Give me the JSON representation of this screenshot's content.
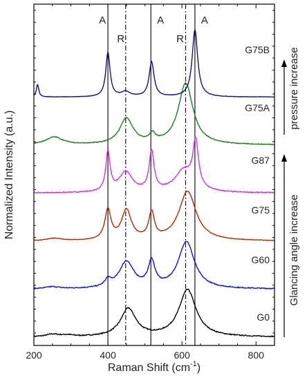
{
  "chart_data": {
    "type": "line",
    "xlabel": "Raman Shift (cm",
    "xlabel_sup": "-1",
    "xlabel_tail": ")",
    "ylabel": "Normalized Intensity (a.u.)",
    "xlim": [
      200,
      850
    ],
    "x_ticks": [
      200,
      400,
      600,
      800
    ],
    "x_tick_labels": [
      "200",
      "400",
      "600",
      "800"
    ],
    "reference_lines": [
      {
        "x": 400,
        "kind": "A",
        "style": "solid"
      },
      {
        "x": 448,
        "kind": "R",
        "style": "dashdot"
      },
      {
        "x": 516,
        "kind": "A",
        "style": "solid"
      },
      {
        "x": 610,
        "kind": "R",
        "style": "dashdot"
      },
      {
        "x": 635,
        "kind": "A",
        "style": "solid"
      }
    ],
    "peak_letters": [
      {
        "x": 400,
        "text": "A"
      },
      {
        "x": 448,
        "text": "R"
      },
      {
        "x": 516,
        "text": "A"
      },
      {
        "x": 610,
        "text": "R"
      },
      {
        "x": 635,
        "text": "A"
      }
    ],
    "series": [
      {
        "name": "G0",
        "color": "#000000",
        "baseline": 0.0,
        "noise": 0.01,
        "peaks": [
          [
            455,
            0.58,
            25
          ],
          [
            615,
            0.98,
            28
          ],
          [
            250,
            0.05,
            20
          ],
          [
            290,
            0.03,
            20
          ]
        ]
      },
      {
        "name": "G60",
        "color": "#1010d8",
        "baseline": 1.0,
        "noise": 0.01,
        "peaks": [
          [
            400,
            0.14,
            10
          ],
          [
            450,
            0.55,
            24
          ],
          [
            518,
            0.52,
            11
          ],
          [
            612,
            0.98,
            26
          ],
          [
            250,
            0.04,
            22
          ]
        ]
      },
      {
        "name": "G75",
        "color": "#b02800",
        "baseline": 2.0,
        "noise": 0.005,
        "peaks": [
          [
            400,
            0.62,
            10
          ],
          [
            450,
            0.62,
            16
          ],
          [
            518,
            0.54,
            9
          ],
          [
            615,
            1.03,
            28
          ],
          [
            255,
            0.05,
            25
          ]
        ]
      },
      {
        "name": "G87",
        "color": "#cc33dd",
        "baseline": 3.0,
        "noise": 0.01,
        "peaks": [
          [
            400,
            0.82,
            7
          ],
          [
            448,
            0.42,
            22
          ],
          [
            518,
            0.82,
            8
          ],
          [
            605,
            0.45,
            30
          ],
          [
            637,
            0.95,
            9
          ]
        ]
      },
      {
        "name": "G75A",
        "color": "#1f7a1f",
        "baseline": 4.0,
        "noise": 0.008,
        "peaks": [
          [
            450,
            0.54,
            22
          ],
          [
            520,
            0.16,
            10
          ],
          [
            610,
            1.28,
            24
          ],
          [
            255,
            0.16,
            28
          ]
        ]
      },
      {
        "name": "G75B",
        "color": "#10107a",
        "baseline": 5.0,
        "noise": 0.004,
        "peaks": [
          [
            210,
            0.26,
            4
          ],
          [
            400,
            0.92,
            7
          ],
          [
            448,
            0.1,
            15
          ],
          [
            518,
            0.72,
            8
          ],
          [
            635,
            1.4,
            9
          ]
        ]
      }
    ],
    "side_annotations": {
      "pressure": "pressure increase",
      "angle": "Glancing angle increase"
    },
    "legend": "none",
    "grid": false
  }
}
